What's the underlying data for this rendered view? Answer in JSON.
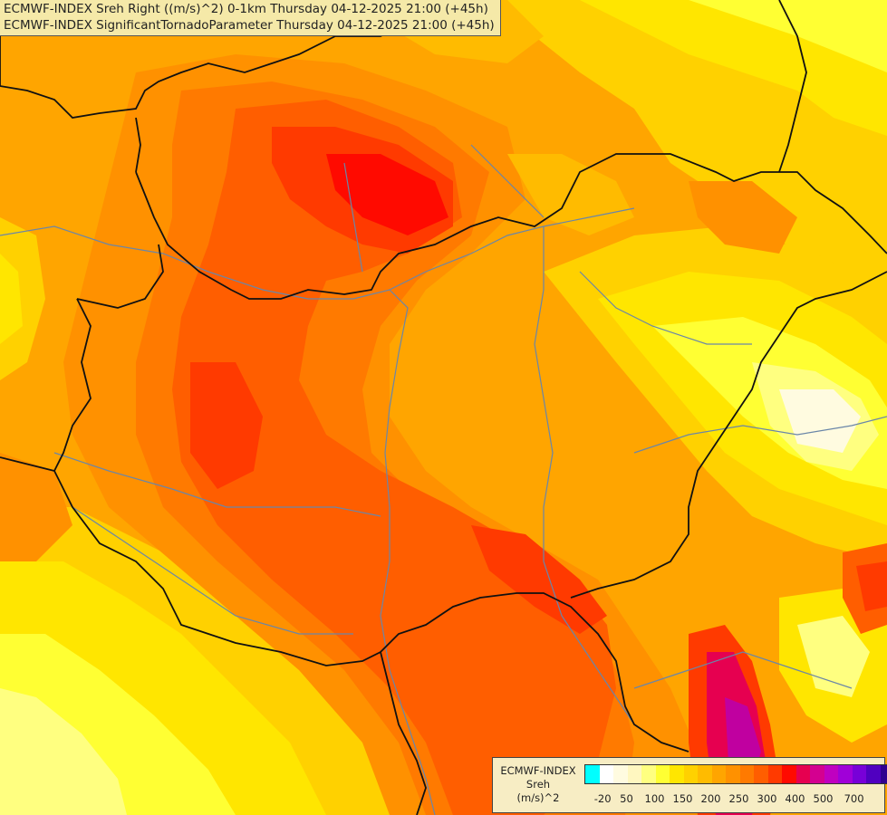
{
  "title_lines": [
    "ECMWF-INDEX Sreh Right ((m/s)^2) 0-1km Thursday 04-12-2025 21:00 (+45h)",
    "ECMWF-INDEX SignificantTornadoParameter Thursday 04-12-2025 21:00 (+45h)"
  ],
  "legend": {
    "source": "ECMWF-INDEX",
    "parameter": "Sreh",
    "unit": "(m/s)^2",
    "tick_labels": [
      "-20",
      "50",
      "100",
      "150",
      "200",
      "250",
      "300",
      "400",
      "500",
      "700"
    ],
    "colors": [
      "#00ffff",
      "#ffffff",
      "#fffbe0",
      "#fff7c0",
      "#ffff80",
      "#ffff33",
      "#ffe600",
      "#ffd100",
      "#ffbb00",
      "#ffa500",
      "#ff9100",
      "#ff7a00",
      "#ff5e00",
      "#ff3a00",
      "#ff0a00",
      "#e60050",
      "#d40090",
      "#c000c0",
      "#a000d8",
      "#7800d8",
      "#5000c0",
      "#300090"
    ]
  },
  "map_colors": {
    "base": "#ffa500",
    "yellow_light": "#ffff80",
    "yellow": "#ffff33",
    "yellow_gold": "#ffe600",
    "gold": "#ffd100",
    "amber": "#ffbb00",
    "orange": "#ff9100",
    "orange_dark": "#ff7a00",
    "red_orange": "#ff5e00",
    "red": "#ff3a00",
    "red_bright": "#ff0a00",
    "crimson": "#e60050",
    "magenta": "#c000a0",
    "pale": "#fffbe0",
    "border": "#111111",
    "river": "#6a86a8"
  }
}
